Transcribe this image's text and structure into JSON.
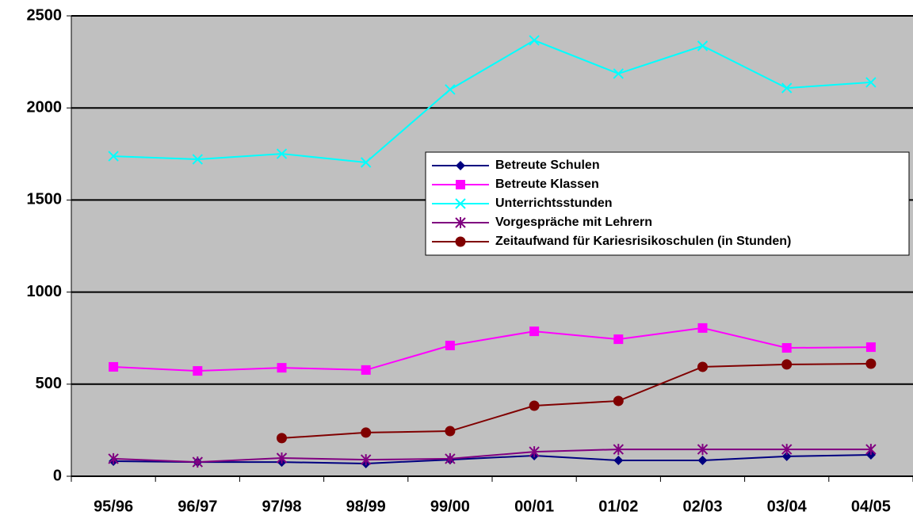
{
  "chart_data": {
    "type": "line",
    "categories": [
      "95/96",
      "96/97",
      "97/98",
      "98/99",
      "99/00",
      "00/01",
      "01/02",
      "02/03",
      "03/04",
      "04/05"
    ],
    "series": [
      {
        "name": "Betreute Schulen",
        "color": "#000080",
        "marker": "diamond",
        "values": [
          82,
          77,
          77,
          69,
          90,
          112,
          86,
          86,
          108,
          116
        ]
      },
      {
        "name": "Betreute Klassen",
        "color": "#ff00ff",
        "marker": "square",
        "values": [
          594,
          572,
          589,
          577,
          710,
          787,
          744,
          805,
          697,
          701
        ]
      },
      {
        "name": "Unterrichtsstunden",
        "color": "#00ffff",
        "marker": "x",
        "values": [
          1738,
          1721,
          1751,
          1704,
          2100,
          2367,
          2186,
          2337,
          2108,
          2139
        ]
      },
      {
        "name": "Vorgespräche mit Lehrern",
        "color": "#800080",
        "marker": "star",
        "values": [
          95,
          77,
          99,
          90,
          95,
          133,
          146,
          146,
          146,
          146
        ]
      },
      {
        "name": "Zeitaufwand für Kariesrisikoschulen (in Stunden)",
        "color": "#800000",
        "marker": "circle",
        "values": [
          null,
          null,
          207,
          237,
          245,
          383,
          409,
          594,
          607,
          611
        ]
      }
    ],
    "ylim": [
      0,
      2500
    ],
    "yticks": [
      0,
      500,
      1000,
      1500,
      2000,
      2500
    ],
    "grid": true,
    "legend": "right",
    "background": "#c0c0c0"
  }
}
